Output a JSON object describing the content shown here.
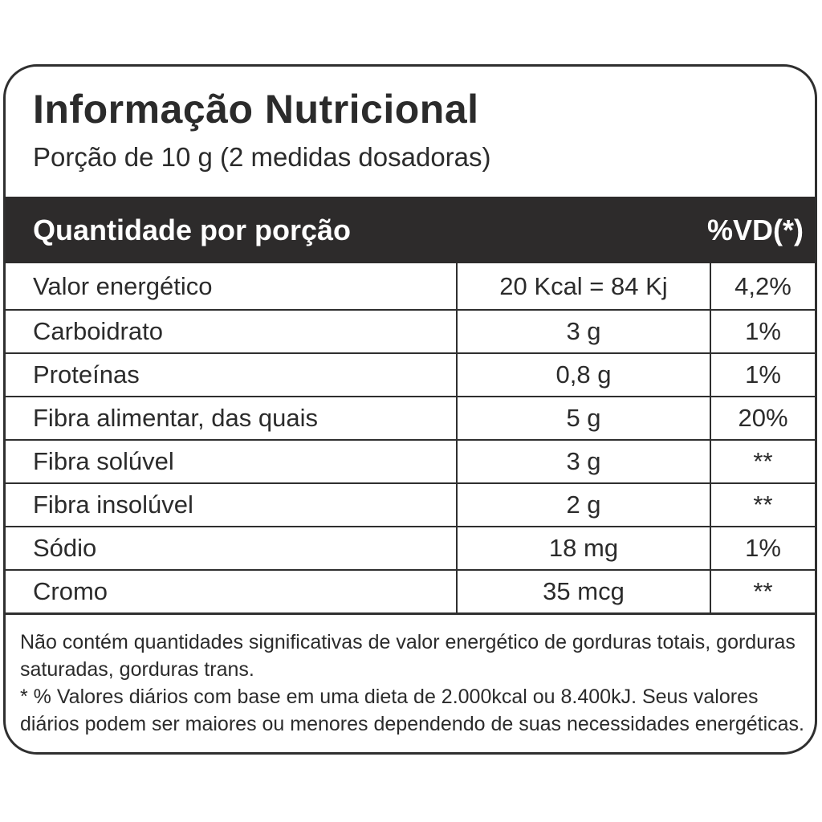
{
  "label": {
    "title": "Informação Nutricional",
    "serving": "Porção de 10 g (2 medidas dosadoras)",
    "header": {
      "quantity_label": "Quantidade por porção",
      "dv_label": "%VD(*)"
    },
    "rows": [
      {
        "name": "Valor energético",
        "amount": "20 Kcal = 84 Kj",
        "dv": "4,2%"
      },
      {
        "name": "Carboidrato",
        "amount": "3 g",
        "dv": "1%"
      },
      {
        "name": "Proteínas",
        "amount": "0,8 g",
        "dv": "1%"
      },
      {
        "name": "Fibra alimentar, das quais",
        "amount": "5 g",
        "dv": "20%"
      },
      {
        "name": "Fibra solúvel",
        "amount": "3 g",
        "dv": "**"
      },
      {
        "name": "Fibra insolúvel",
        "amount": "2 g",
        "dv": "**"
      },
      {
        "name": "Sódio",
        "amount": "18 mg",
        "dv": "1%"
      },
      {
        "name": "Cromo",
        "amount": "35 mcg",
        "dv": "**"
      }
    ],
    "footnote_1": "Não contém quantidades significativas de valor energético de gorduras totais, gorduras saturadas, gorduras trans.",
    "footnote_2": "* % Valores diários com base em uma dieta de 2.000kcal ou 8.400kJ. Seus valores diários podem ser maiores ou menores dependendo de suas necessidades energéticas."
  },
  "colors": {
    "header_background": "#2d2b2b",
    "text": "#2b2b2b",
    "border": "#2f2f2f"
  }
}
